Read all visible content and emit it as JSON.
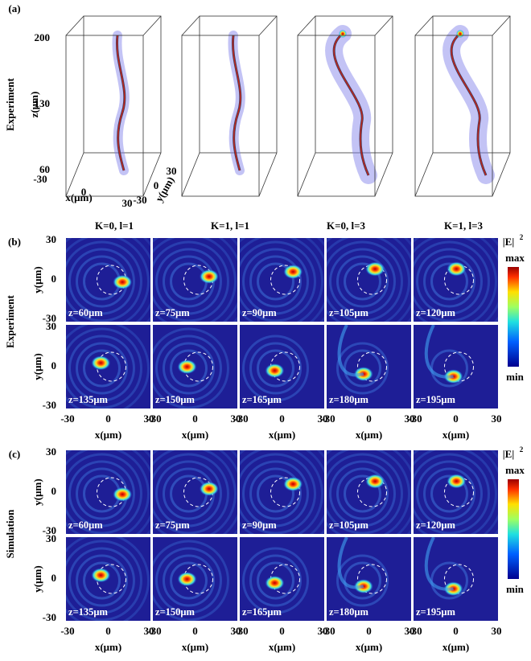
{
  "panel_a": {
    "label": "(a)",
    "row_label": "Experiment",
    "z_label": "z(μm)",
    "z_ticks": [
      "200",
      "130",
      "60"
    ],
    "x_label": "x(μm)",
    "x_ticks": [
      "-30",
      "0",
      "30"
    ],
    "y_label": "y(μm)",
    "y_ticks": [
      "30",
      "0",
      "-30"
    ],
    "captions": [
      "K=0, l=1",
      "K=1, l=1",
      "K=0, l=3",
      "K=1, l=3"
    ]
  },
  "panel_b": {
    "label": "(b)",
    "row_label": "Experiment",
    "colorbar": {
      "title": "|E|",
      "exponent": "2",
      "max": "max",
      "min": "min"
    },
    "y_label": "y(μm)",
    "y_ticks": [
      "30",
      "0",
      "-30"
    ],
    "x_label": "x(μm)",
    "x_ticks": [
      "-30",
      "0",
      "30"
    ],
    "frames": [
      "z=60μm",
      "z=75μm",
      "z=90μm",
      "z=105μm",
      "z=120μm",
      "z=135μm",
      "z=150μm",
      "z=165μm",
      "z=180μm",
      "z=195μm"
    ]
  },
  "panel_c": {
    "label": "(c)",
    "row_label": "Simulation",
    "colorbar": {
      "title": "|E|",
      "exponent": "2",
      "max": "max",
      "min": "min"
    },
    "y_label": "y(μm)",
    "y_ticks": [
      "30",
      "0",
      "-30"
    ],
    "x_label": "x(μm)",
    "x_ticks": [
      "-30",
      "0",
      "30"
    ],
    "frames": [
      "z=60μm",
      "z=75μm",
      "z=90μm",
      "z=105μm",
      "z=120μm",
      "z=135μm",
      "z=150μm",
      "z=165μm",
      "z=180μm",
      "z=195μm"
    ]
  }
}
